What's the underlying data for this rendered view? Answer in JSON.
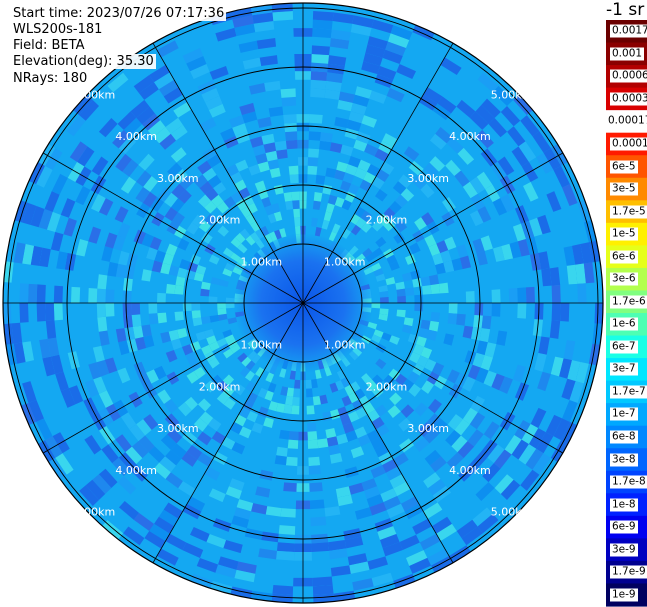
{
  "header": {
    "start_time": "Start time: 2023/07/26 07:17:36",
    "instrument": "WLS200s-181",
    "field": "Field: BETA",
    "elevation": "Elevation(deg): 35.30",
    "nrays": "NRays: 180"
  },
  "map": {
    "type": "ppi-polar",
    "ring_labels": [
      "1.00km",
      "2.00km",
      "3.00km",
      "4.00km",
      "5.00km"
    ],
    "spokes": 12,
    "colors": {
      "background_fill": "#14a8f2",
      "ring_color": "#000000",
      "label_color": "#ffffff"
    }
  },
  "colorbar": {
    "title": "-1 sr",
    "labels": [
      "0.0017",
      "0.001",
      "0.0006",
      "0.0003",
      "0.00017",
      "0.0001",
      "6e-5",
      "3e-5",
      "1.7e-5",
      "1e-5",
      "6e-6",
      "3e-6",
      "1.7e-6",
      "1e-6",
      "6e-7",
      "3e-7",
      "1.7e-7",
      "1e-7",
      "6e-8",
      "3e-8",
      "1.7e-8",
      "1e-8",
      "6e-9",
      "3e-9",
      "1.7e-9",
      "1e-9"
    ],
    "colors": [
      "#6b0000",
      "#8a0000",
      "#b20000",
      "#d90000",
      "#ffffff",
      "#ff1a00",
      "#ff5500",
      "#ff8a00",
      "#ffbf00",
      "#fff000",
      "#e6ff1a",
      "#b3ff4d",
      "#80ff80",
      "#4dffb3",
      "#1affe6",
      "#00e6ff",
      "#00c8ff",
      "#00a8ff",
      "#0088ff",
      "#0066ff",
      "#0044ff",
      "#0022ff",
      "#0000f0",
      "#0000c0",
      "#000090",
      "#000060"
    ]
  }
}
